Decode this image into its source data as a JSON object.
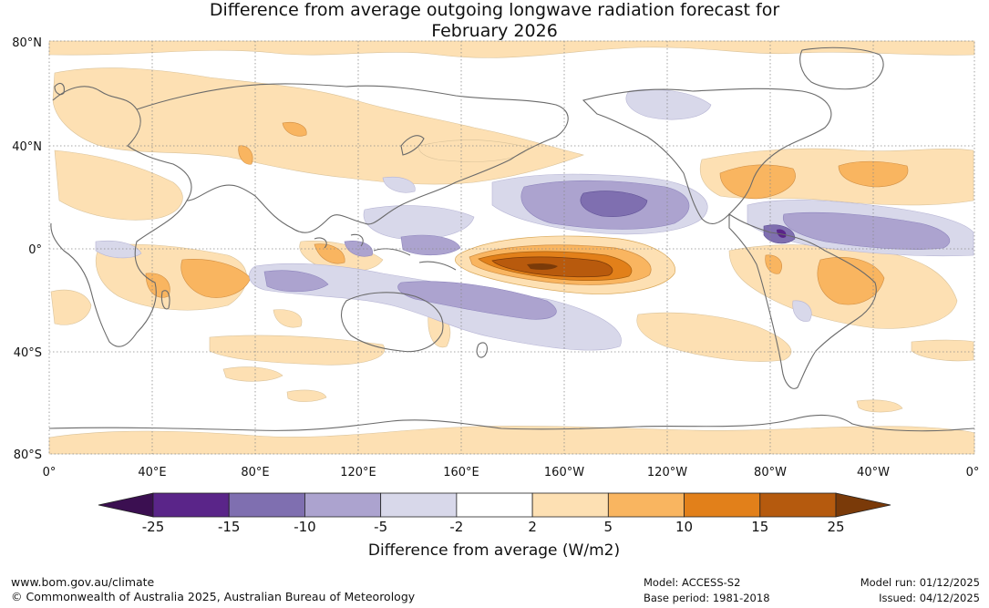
{
  "title": {
    "line1": "Difference from average outgoing longwave radiation forecast for",
    "line2": "February 2026"
  },
  "map": {
    "lat_labels": [
      "80°N",
      "40°N",
      "0°",
      "40°S",
      "80°S"
    ],
    "lon_labels": [
      "0°",
      "40°E",
      "80°E",
      "120°E",
      "160°E",
      "160°W",
      "120°W",
      "80°W",
      "40°W",
      "0°"
    ],
    "anomaly_regions": [
      {
        "name": "equatorial-pacific-positive",
        "value_range": "15 to 25",
        "color": "#b85a0d"
      },
      {
        "name": "north-pacific-negative",
        "value_range": "-15 to -10",
        "color": "#7f6fb0"
      },
      {
        "name": "amazon-negative",
        "value_range": "-15 to -10",
        "color": "#5b2c8a"
      },
      {
        "name": "south-america-positive",
        "value_range": "5 to 10",
        "color": "#f7b35f"
      }
    ]
  },
  "colorbar": {
    "title": "Difference from average (W/m2)",
    "tick_labels": [
      "-25",
      "-15",
      "-10",
      "-5",
      "-2",
      "2",
      "5",
      "10",
      "15",
      "25"
    ],
    "colors": [
      "#3b0f51",
      "#5a2589",
      "#7f6fb0",
      "#aca3cf",
      "#d8d8ea",
      "#ffffff",
      "#fde0b3",
      "#f9b560",
      "#e2801a",
      "#b55a0e",
      "#7a3a09"
    ]
  },
  "footer": {
    "url": "www.bom.gov.au/climate",
    "copyright": "© Commonwealth of Australia 2025, Australian Bureau of Meteorology",
    "model": "Model: ACCESS-S2",
    "base_period": "Base period: 1981-2018",
    "model_run": "Model run: 01/12/2025",
    "issued": "Issued: 04/12/2025"
  }
}
